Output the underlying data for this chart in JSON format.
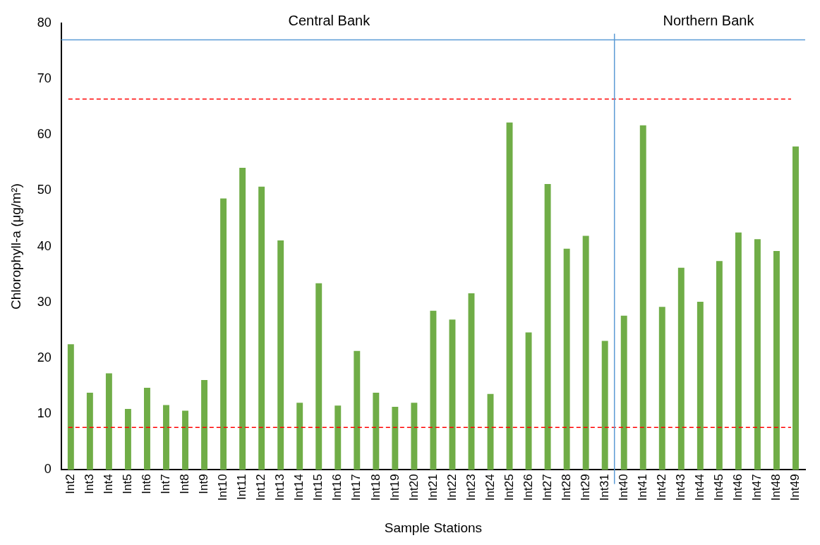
{
  "chart_data": {
    "type": "bar",
    "xlabel": "Sample Stations",
    "ylabel": "Chlorophyll-a (μg/m²)",
    "categories": [
      "Int2",
      "Int3",
      "Int4",
      "Int5",
      "Int6",
      "Int7",
      "Int8",
      "Int9",
      "Int10",
      "Int11",
      "Int12",
      "Int13",
      "Int14",
      "Int15",
      "Int16",
      "Int17",
      "Int18",
      "Int19",
      "Int20",
      "Int21",
      "Int22",
      "Int23",
      "Int24",
      "Int25",
      "Int26",
      "Int27",
      "Int28",
      "Int29",
      "Int31",
      "Int40",
      "Int41",
      "Int42",
      "Int43",
      "Int44",
      "Int45",
      "Int46",
      "Int47",
      "Int48",
      "Int49"
    ],
    "values": [
      22.5,
      13.8,
      17.3,
      10.9,
      14.7,
      11.6,
      10.6,
      16.1,
      48.6,
      54.1,
      50.7,
      41.1,
      12.0,
      33.4,
      11.5,
      21.3,
      13.8,
      11.3,
      12.0,
      28.5,
      26.9,
      31.6,
      13.6,
      62.2,
      24.6,
      51.2,
      39.6,
      41.9,
      23.1,
      27.6,
      61.7,
      29.2,
      36.2,
      30.1,
      37.4,
      42.5,
      41.3,
      39.2,
      57.9
    ],
    "color": "#70ad47",
    "ylim": [
      0,
      80
    ],
    "yticks": [
      0,
      10,
      20,
      30,
      40,
      50,
      60,
      70,
      80
    ],
    "grid": false,
    "legend": false,
    "ref_lines": [
      {
        "axis": "y",
        "value": 66.4,
        "label": null,
        "color": "#ff0000",
        "line_style": "dashed"
      },
      {
        "axis": "y",
        "value": 7.6,
        "label": null,
        "color": "#ff0000",
        "line_style": "dashed"
      },
      {
        "axis": "y",
        "value": 77,
        "label": null,
        "color": "#5b9bd5",
        "line_style": "solid"
      },
      {
        "axis": "x",
        "value": "Int31",
        "label": null,
        "color": "#5b9bd5",
        "line_style": "solid"
      }
    ],
    "annotations": [
      "Central Bank",
      "Northern Bank"
    ]
  }
}
